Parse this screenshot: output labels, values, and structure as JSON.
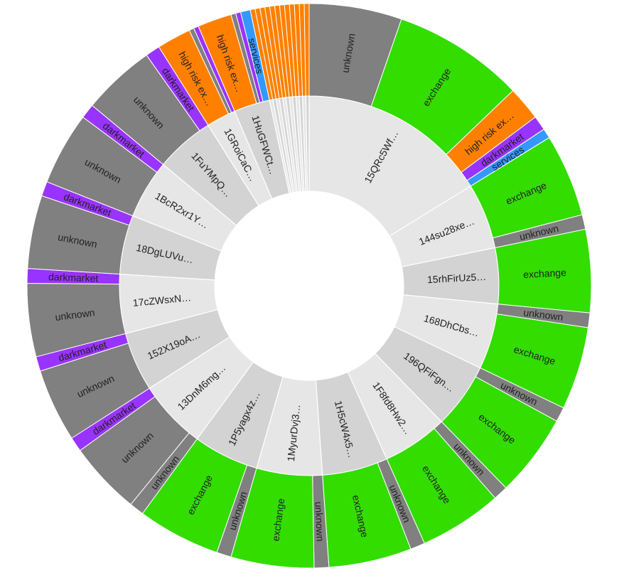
{
  "chart_data": {
    "type": "sunburst",
    "title": "",
    "colors": {
      "unknown": "#808080",
      "exchange": "#33dd00",
      "high risk exchange": "#ff8000",
      "darkmarket": "#9933ff",
      "services": "#3399ff"
    },
    "inner_colors": [
      "#e6e6e6",
      "#d3d3d3"
    ],
    "nodes": [
      {
        "label": "15QRc5Wf…",
        "children": [
          {
            "category": "unknown",
            "label": "unknown",
            "value": 19
          },
          {
            "category": "exchange",
            "label": "exchange",
            "value": 27
          },
          {
            "category": "high risk exchange",
            "label": "high risk ex…",
            "value": 7
          },
          {
            "category": "darkmarket",
            "label": "darkmarket",
            "value": 3
          },
          {
            "category": "services",
            "label": "services",
            "value": 2
          }
        ]
      },
      {
        "label": "144su28xe…",
        "children": [
          {
            "category": "exchange",
            "label": "exchange",
            "value": 17
          },
          {
            "category": "unknown",
            "label": "unknown",
            "value": 3
          }
        ]
      },
      {
        "label": "15rhFirUz5…",
        "children": [
          {
            "category": "exchange",
            "label": "exchange",
            "value": 17
          }
        ]
      },
      {
        "label": "168DhCbs…",
        "children": [
          {
            "category": "unknown",
            "label": "unknown",
            "value": 3
          },
          {
            "category": "exchange",
            "label": "exchange",
            "value": 17
          }
        ]
      },
      {
        "label": "196QFiFgn…",
        "children": [
          {
            "category": "unknown",
            "label": "unknown",
            "value": 3
          },
          {
            "category": "exchange",
            "label": "exchange",
            "value": 17
          }
        ]
      },
      {
        "label": "1F8fd8Hw2…",
        "children": [
          {
            "category": "unknown",
            "label": "unknown",
            "value": 3
          },
          {
            "category": "exchange",
            "label": "exchange",
            "value": 17
          }
        ]
      },
      {
        "label": "1H5cW4x5…",
        "children": [
          {
            "category": "unknown",
            "label": "unknown",
            "value": 3
          },
          {
            "category": "exchange",
            "label": "exchange",
            "value": 17
          }
        ]
      },
      {
        "label": "1MyurDvj3…",
        "children": [
          {
            "category": "unknown",
            "label": "unknown",
            "value": 3
          },
          {
            "category": "exchange",
            "label": "exchange",
            "value": 17
          }
        ]
      },
      {
        "label": "1P5yagx4z…",
        "children": [
          {
            "category": "unknown",
            "label": "unknown",
            "value": 3
          },
          {
            "category": "exchange",
            "label": "exchange",
            "value": 17
          }
        ]
      },
      {
        "label": "13DnM6mg…",
        "children": [
          {
            "category": "unknown",
            "label": "unknown",
            "value": 3
          },
          {
            "category": "unknown",
            "label": "unknown",
            "value": 15
          },
          {
            "category": "darkmarket",
            "label": "darkmarket",
            "value": 3
          }
        ]
      },
      {
        "label": "152X19oA…",
        "children": [
          {
            "category": "unknown",
            "label": "unknown",
            "value": 15
          },
          {
            "category": "darkmarket",
            "label": "darkmarket",
            "value": 3
          }
        ]
      },
      {
        "label": "17cZWsxN…",
        "children": [
          {
            "category": "unknown",
            "label": "unknown",
            "value": 15
          },
          {
            "category": "darkmarket",
            "label": "darkmarket",
            "value": 3
          }
        ]
      },
      {
        "label": "18DgLUVu…",
        "children": [
          {
            "category": "unknown",
            "label": "unknown",
            "value": 15
          },
          {
            "category": "darkmarket",
            "label": "darkmarket",
            "value": 3
          }
        ]
      },
      {
        "label": "1BcR2xr1Y…",
        "children": [
          {
            "category": "unknown",
            "label": "unknown",
            "value": 15
          },
          {
            "category": "darkmarket",
            "label": "darkmarket",
            "value": 3
          }
        ]
      },
      {
        "label": "1FuYMpQ…",
        "children": [
          {
            "category": "unknown",
            "label": "unknown",
            "value": 15
          },
          {
            "category": "darkmarket",
            "label": "darkmarket",
            "value": 3
          }
        ]
      },
      {
        "label": "1GRoiCaC…",
        "children": [
          {
            "category": "high risk exchange",
            "label": "high risk ex…",
            "value": 7
          },
          {
            "category": "unknown",
            "label": "",
            "value": 1
          },
          {
            "category": "darkmarket",
            "label": "",
            "value": 1
          }
        ]
      },
      {
        "label": "1HuGFWCt…",
        "children": [
          {
            "category": "high risk exchange",
            "label": "high risk ex…",
            "value": 7
          },
          {
            "category": "unknown",
            "label": "",
            "value": 1
          },
          {
            "category": "darkmarket",
            "label": "",
            "value": 1
          },
          {
            "category": "services",
            "label": "services",
            "value": 2
          }
        ]
      },
      {
        "label": "",
        "children": [
          {
            "category": "high risk exchange",
            "label": "",
            "value": 1
          }
        ]
      },
      {
        "label": "",
        "children": [
          {
            "category": "high risk exchange",
            "label": "",
            "value": 1
          }
        ]
      },
      {
        "label": "",
        "children": [
          {
            "category": "high risk exchange",
            "label": "",
            "value": 1
          }
        ]
      },
      {
        "label": "",
        "children": [
          {
            "category": "high risk exchange",
            "label": "",
            "value": 1
          }
        ]
      },
      {
        "label": "",
        "children": [
          {
            "category": "high risk exchange",
            "label": "",
            "value": 1
          }
        ]
      },
      {
        "label": "",
        "children": [
          {
            "category": "high risk exchange",
            "label": "",
            "value": 1
          }
        ]
      },
      {
        "label": "",
        "children": [
          {
            "category": "high risk exchange",
            "label": "",
            "value": 1
          }
        ]
      },
      {
        "label": "",
        "children": [
          {
            "category": "high risk exchange",
            "label": "",
            "value": 1
          }
        ]
      },
      {
        "label": "",
        "children": [
          {
            "category": "high risk exchange",
            "label": "",
            "value": 1
          }
        ]
      },
      {
        "label": "",
        "children": [
          {
            "category": "high risk exchange",
            "label": "",
            "value": 1
          }
        ]
      },
      {
        "label": "",
        "children": [
          {
            "category": "high risk exchange",
            "label": "",
            "value": 1
          }
        ]
      },
      {
        "label": "",
        "children": [
          {
            "category": "high risk exchange",
            "label": "",
            "value": 1
          }
        ]
      }
    ]
  }
}
